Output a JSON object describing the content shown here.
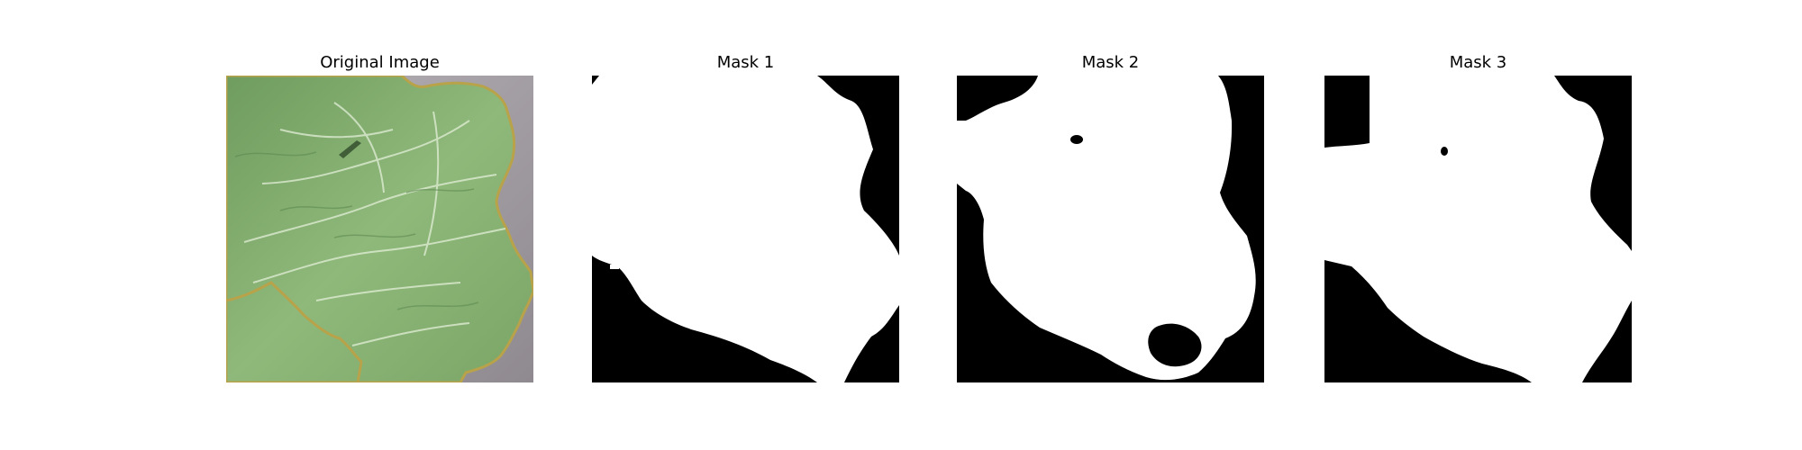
{
  "figure": {
    "panels": [
      {
        "title": "Original Image",
        "content": "leaf-photo"
      },
      {
        "title": "Mask 1",
        "content": "binary-mask"
      },
      {
        "title": "Mask 2",
        "content": "binary-mask"
      },
      {
        "title": "Mask 3",
        "content": "binary-mask"
      }
    ]
  },
  "colors": {
    "background": "#ffffff",
    "mask_foreground": "#ffffff",
    "mask_background": "#000000",
    "leaf_green": "#7fae6a",
    "leaf_vein": "#dcead0",
    "floor_gray": "#9c969c",
    "leaf_edge": "#b8a24a"
  }
}
